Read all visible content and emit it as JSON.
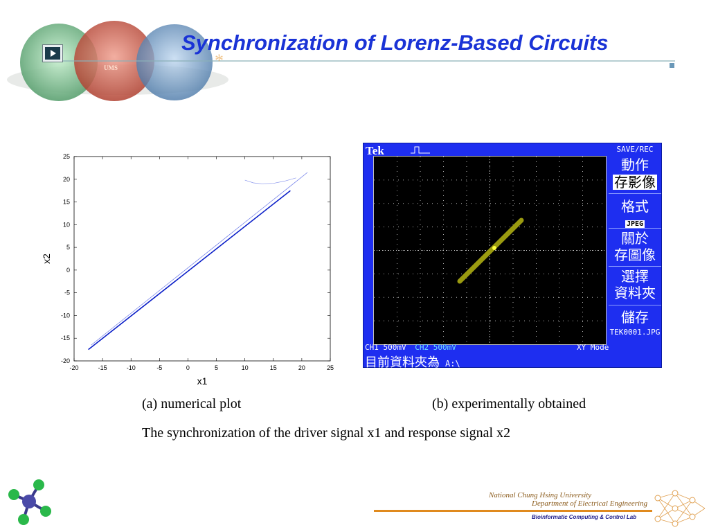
{
  "slide": {
    "title": "Synchronization of Lorenz-Based Circuits"
  },
  "banner": {
    "play_icon": "play-icon",
    "logo_text": "UMS"
  },
  "chart_data": {
    "type": "line",
    "title": "",
    "xlabel": "x1",
    "ylabel": "x2",
    "xlim": [
      -20,
      25
    ],
    "ylim": [
      -20,
      25
    ],
    "xticks": [
      -20,
      -15,
      -10,
      -5,
      0,
      5,
      10,
      15,
      20,
      25
    ],
    "yticks": [
      -20,
      -15,
      -10,
      -5,
      0,
      5,
      10,
      15,
      20,
      25
    ],
    "series": [
      {
        "color": "#0a1ec8",
        "width": 1.6,
        "x": [
          -17.5,
          18
        ],
        "y": [
          -17.5,
          17.5
        ]
      },
      {
        "color": "#6a78e8",
        "width": 0.7,
        "x": [
          -17,
          -5,
          5,
          12,
          17,
          21
        ],
        "y": [
          -16.5,
          -4.5,
          5.5,
          12.5,
          17.5,
          21.5
        ]
      },
      {
        "color": "#8a96ec",
        "width": 0.7,
        "x": [
          10,
          11.5,
          13,
          15,
          17,
          19
        ],
        "y": [
          19.8,
          19.2,
          19.0,
          19.1,
          19.6,
          20.3
        ]
      }
    ],
    "grid": false
  },
  "scope": {
    "brand": "Tek",
    "menu": {
      "save_rec": "SAVE/REC",
      "action": "動作",
      "save_image": "存影像",
      "format": "格式",
      "jpeg": "JPEG",
      "about_line1": "關於",
      "about_line2": "存圖像",
      "select_line1": "選擇",
      "select_line2": "資料夾",
      "store": "儲存",
      "filename": "TEK0001.JPG"
    },
    "status": {
      "ch1": "CH1",
      "ch1_scale": "500mV",
      "ch2": "CH2",
      "ch2_scale": "500mV",
      "mode": "XY Mode",
      "folder_label": "目前資料夾為",
      "drive": "A:\\"
    },
    "trace": {
      "color": "#9a9a10",
      "cursor_color": "#ffff40"
    }
  },
  "captions": {
    "a": "(a) numerical plot",
    "b": "(b) experimentally obtained",
    "description": "The synchronization of the driver signal x1 and response signal x2"
  },
  "footer": {
    "university": "National Chung Hsing University",
    "department": "Department of Electrical Engineering",
    "lab": "Bioinformatic Computing & Control Lab",
    "molecule_icon": "molecule-icon",
    "network_icon": "neural-network-icon"
  }
}
